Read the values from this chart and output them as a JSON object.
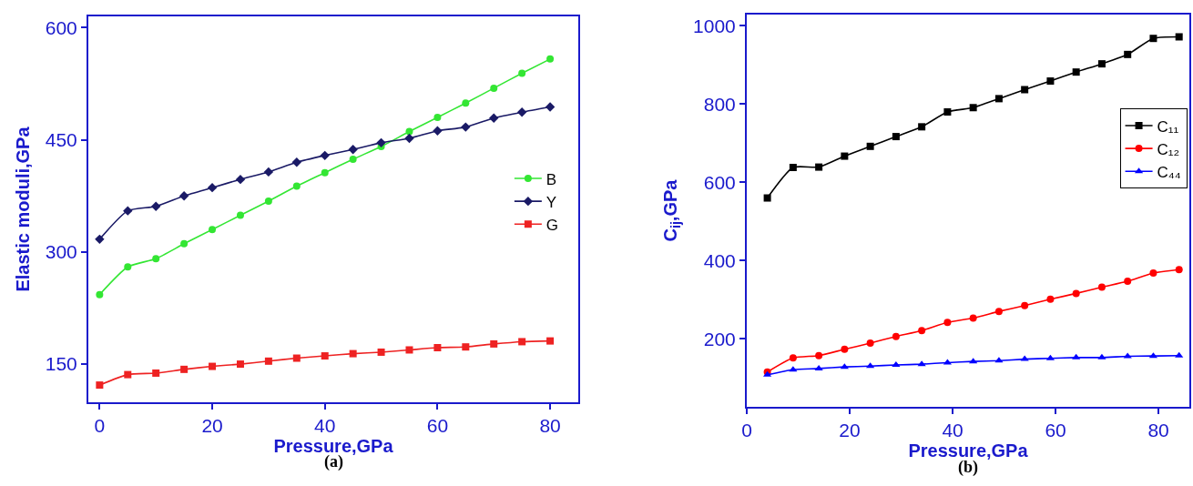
{
  "chart_data": [
    {
      "type": "line",
      "xlabel": "Pressure,GPa",
      "ylabel": "Elastic moduli,GPa",
      "annotations": [
        "(a)"
      ],
      "legend": "right",
      "xlim": [
        -2,
        85
      ],
      "xticks": [
        0,
        20,
        40,
        60,
        80
      ],
      "ylim": [
        99,
        615
      ],
      "yticks": [
        150,
        300,
        450,
        600
      ],
      "x": [
        0,
        5,
        10,
        15,
        20,
        25,
        30,
        35,
        40,
        45,
        50,
        55,
        60,
        65,
        70,
        75,
        80
      ],
      "series": [
        {
          "name": "B",
          "color": "#33e633",
          "marker": "circle",
          "values": [
            243,
            280,
            291,
            311,
            330,
            349,
            368,
            388,
            406,
            424,
            441,
            461,
            480,
            499,
            519,
            539,
            558
          ]
        },
        {
          "name": "Y",
          "color": "#1a1a66",
          "marker": "diamond",
          "values": [
            317,
            355,
            361,
            375,
            386,
            397,
            407,
            420,
            429,
            437,
            446,
            452,
            462,
            467,
            479,
            487,
            494
          ]
        },
        {
          "name": "G",
          "color": "#ee2222",
          "marker": "square",
          "values": [
            122,
            136,
            138,
            143,
            147,
            150,
            154,
            158,
            161,
            164,
            166,
            169,
            172,
            173,
            177,
            180,
            181
          ]
        }
      ]
    },
    {
      "type": "line",
      "xlabel": "Pressure,GPa",
      "ylabel": "C$_{ij}$,GPa",
      "annotations": [
        "(b)"
      ],
      "legend": "top right",
      "xlim": [
        0,
        86
      ],
      "xticks": [
        0,
        20,
        40,
        60,
        80
      ],
      "ylim": [
        26,
        1029
      ],
      "yticks": [
        200,
        400,
        600,
        800,
        1000
      ],
      "x": [
        4,
        9,
        14,
        19,
        24,
        29,
        34,
        39,
        44,
        49,
        54,
        59,
        64,
        69,
        74,
        79,
        84
      ],
      "series": [
        {
          "name": "C₁₁",
          "color": "#000000",
          "marker": "square",
          "values": [
            560,
            638,
            639,
            667,
            692,
            717,
            742,
            780,
            791,
            814,
            837,
            859,
            882,
            903,
            927,
            968,
            972
          ]
        },
        {
          "name": "C₁₂",
          "color": "#ff0000",
          "marker": "circle",
          "values": [
            115,
            151,
            157,
            173,
            189,
            206,
            221,
            242,
            253,
            270,
            285,
            301,
            316,
            332,
            347,
            368,
            377
          ]
        },
        {
          "name": "C₄₄",
          "color": "#0000ff",
          "marker": "triangle",
          "values": [
            108,
            121,
            124,
            128,
            130,
            133,
            135,
            139,
            142,
            144,
            148,
            150,
            152,
            152,
            155,
            156,
            157
          ]
        }
      ]
    }
  ]
}
